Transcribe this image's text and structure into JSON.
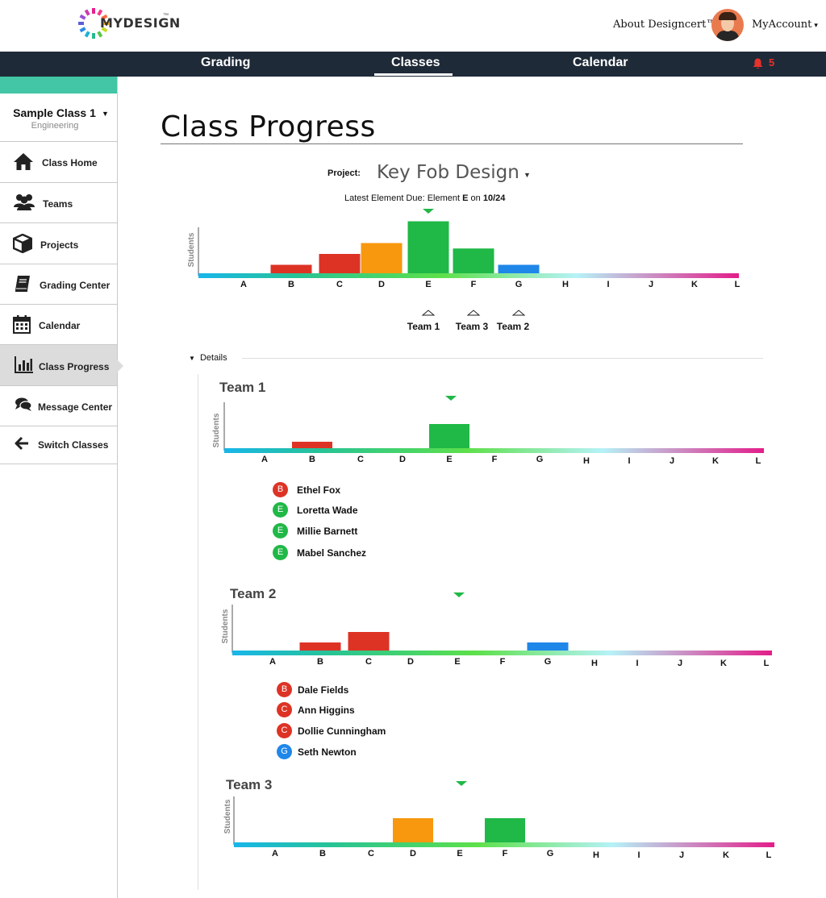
{
  "header": {
    "logo_text": "MYDESIGN",
    "logo_tm": "™",
    "about": "About Designcert™",
    "account": "MyAccount",
    "account_caret": "▾"
  },
  "nav": {
    "tabs": [
      "Grading",
      "Classes",
      "Calendar"
    ],
    "active": "Classes",
    "notifications": "5"
  },
  "sidebar": {
    "class_name": "Sample Class 1",
    "class_sub": "Engineering",
    "items": [
      {
        "label": "Class Home",
        "icon": "home-icon"
      },
      {
        "label": "Teams",
        "icon": "users-icon"
      },
      {
        "label": "Projects",
        "icon": "cube-icon"
      },
      {
        "label": "Grading Center",
        "icon": "book-icon"
      },
      {
        "label": "Calendar",
        "icon": "calendar-icon"
      },
      {
        "label": "Class Progress",
        "icon": "bar-chart-icon"
      },
      {
        "label": "Message Center",
        "icon": "chat-icon"
      },
      {
        "label": "Switch Classes",
        "icon": "arrow-left-icon"
      }
    ],
    "active": "Class Progress"
  },
  "main": {
    "title": "Class Progress",
    "project_label": "Project:",
    "project_name": "Key Fob Design",
    "latest_prefix": "Latest Element Due: Element ",
    "latest_element": "E",
    "latest_mid": " on ",
    "latest_date": "10/24",
    "details_label": "Details"
  },
  "colors": {
    "red": "#dd3325",
    "orange": "#f7980e",
    "green": "#20b847",
    "blue": "#1f87e8"
  },
  "chart_data": [
    {
      "type": "bar",
      "ylabel": "Students",
      "categories": [
        "A",
        "B",
        "C",
        "D",
        "E",
        "F",
        "G",
        "H",
        "I",
        "J",
        "K",
        "L"
      ],
      "values": [
        0,
        1,
        2,
        3,
        5,
        2.5,
        1,
        0,
        0,
        0,
        0,
        0
      ],
      "due_marker": "E",
      "team_markers": [
        {
          "name": "Team 1",
          "element": "E"
        },
        {
          "name": "Team 3",
          "element": "F"
        },
        {
          "name": "Team 2",
          "element": "G"
        }
      ]
    },
    {
      "type": "bar",
      "title": "Team 1",
      "ylabel": "Students",
      "categories": [
        "A",
        "B",
        "C",
        "D",
        "E",
        "F",
        "G",
        "H",
        "I",
        "J",
        "K",
        "L"
      ],
      "values": [
        0,
        1,
        0,
        0,
        3,
        0,
        0,
        0,
        0,
        0,
        0,
        0
      ],
      "due_marker": "E"
    },
    {
      "type": "bar",
      "title": "Team 2",
      "ylabel": "Students",
      "categories": [
        "A",
        "B",
        "C",
        "D",
        "E",
        "F",
        "G",
        "H",
        "I",
        "J",
        "K",
        "L"
      ],
      "values": [
        0,
        1,
        2,
        0,
        0,
        0,
        1,
        0,
        0,
        0,
        0,
        0
      ],
      "due_marker": "E"
    },
    {
      "type": "bar",
      "title": "Team 3",
      "ylabel": "Students",
      "categories": [
        "A",
        "B",
        "C",
        "D",
        "E",
        "F",
        "G",
        "H",
        "I",
        "J",
        "K",
        "L"
      ],
      "values": [
        0,
        0,
        0,
        1,
        0,
        1,
        0,
        0,
        0,
        0,
        0,
        0
      ],
      "due_marker": "E"
    }
  ],
  "teams": [
    {
      "name": "Team 1",
      "students": [
        {
          "element": "B",
          "name": "Ethel Fox",
          "color": "#dd3325"
        },
        {
          "element": "E",
          "name": "Loretta Wade",
          "color": "#20b847"
        },
        {
          "element": "E",
          "name": "Millie Barnett",
          "color": "#20b847"
        },
        {
          "element": "E",
          "name": "Mabel Sanchez",
          "color": "#20b847"
        }
      ]
    },
    {
      "name": "Team 2",
      "students": [
        {
          "element": "B",
          "name": "Dale Fields",
          "color": "#dd3325"
        },
        {
          "element": "C",
          "name": "Ann Higgins",
          "color": "#dd3325"
        },
        {
          "element": "C",
          "name": "Dollie Cunningham",
          "color": "#dd3325"
        },
        {
          "element": "G",
          "name": "Seth Newton",
          "color": "#1f87e8"
        }
      ]
    },
    {
      "name": "Team 3",
      "students": []
    }
  ]
}
